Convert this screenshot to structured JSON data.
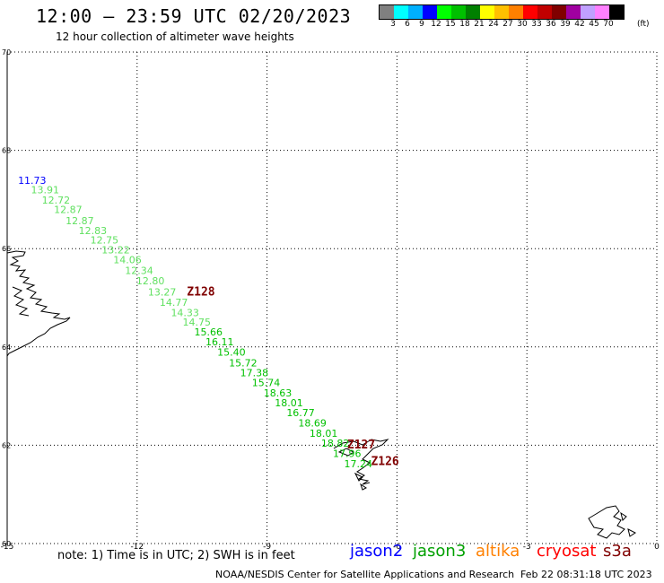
{
  "header": {
    "title": "12:00 – 23:59 UTC 02/20/2023",
    "subtitle": "12 hour collection of altimeter wave heights"
  },
  "colorbar": {
    "colors": [
      "#808080",
      "#00ffff",
      "#00b0ff",
      "#0000ff",
      "#00ff00",
      "#00c000",
      "#008000",
      "#ffff00",
      "#ffc000",
      "#ff8000",
      "#ff0000",
      "#c00000",
      "#800000",
      "#a000a0",
      "#c0a0ff",
      "#ff80ff",
      "#000000"
    ],
    "labels": [
      "3",
      "6",
      "9",
      "12",
      "15",
      "18",
      "21",
      "24",
      "27",
      "30",
      "33",
      "36",
      "39",
      "42",
      "45",
      "70"
    ],
    "unit": "(ft)"
  },
  "axes": {
    "x_ticks": [
      "-15",
      "-12",
      "-9",
      "-6",
      "-3",
      "0"
    ],
    "y_ticks": [
      "70",
      "68",
      "66",
      "64",
      "62",
      "60"
    ]
  },
  "map_data": {
    "lon_range": [
      -15,
      0
    ],
    "lat_range": [
      60,
      70
    ],
    "swh_points": [
      {
        "lon": -14.75,
        "lat": 67.32,
        "value": "11.73",
        "color": "#0000ff"
      },
      {
        "lon": -14.45,
        "lat": 67.13,
        "value": "13.91",
        "color": "#60e060"
      },
      {
        "lon": -14.2,
        "lat": 66.92,
        "value": "12.72",
        "color": "#60e060"
      },
      {
        "lon": -13.92,
        "lat": 66.72,
        "value": "12.87",
        "color": "#60e060"
      },
      {
        "lon": -13.65,
        "lat": 66.5,
        "value": "12.87",
        "color": "#60e060"
      },
      {
        "lon": -13.35,
        "lat": 66.3,
        "value": "12.83",
        "color": "#60e060"
      },
      {
        "lon": -13.08,
        "lat": 66.1,
        "value": "12.75",
        "color": "#60e060"
      },
      {
        "lon": -12.82,
        "lat": 65.9,
        "value": "13.22",
        "color": "#60e060"
      },
      {
        "lon": -12.55,
        "lat": 65.7,
        "value": "14.06",
        "color": "#60e060"
      },
      {
        "lon": -12.28,
        "lat": 65.48,
        "value": "12.34",
        "color": "#60e060"
      },
      {
        "lon": -12.02,
        "lat": 65.27,
        "value": "12.80",
        "color": "#60e060"
      },
      {
        "lon": -11.75,
        "lat": 65.05,
        "value": "13.27",
        "color": "#60e060"
      },
      {
        "lon": -11.48,
        "lat": 64.84,
        "value": "14.77",
        "color": "#60e060"
      },
      {
        "lon": -11.22,
        "lat": 64.63,
        "value": "14.33",
        "color": "#60e060"
      },
      {
        "lon": -10.95,
        "lat": 64.43,
        "value": "14.75",
        "color": "#60e060"
      },
      {
        "lon": -10.68,
        "lat": 64.23,
        "value": "15.66",
        "color": "#00c000"
      },
      {
        "lon": -10.42,
        "lat": 64.03,
        "value": "16.11",
        "color": "#00c000"
      },
      {
        "lon": -10.15,
        "lat": 63.82,
        "value": "15.40",
        "color": "#00c000"
      },
      {
        "lon": -9.88,
        "lat": 63.6,
        "value": "15.72",
        "color": "#00c000"
      },
      {
        "lon": -9.62,
        "lat": 63.4,
        "value": "17.38",
        "color": "#00c000"
      },
      {
        "lon": -9.35,
        "lat": 63.2,
        "value": "15.74",
        "color": "#00c000"
      },
      {
        "lon": -9.08,
        "lat": 62.99,
        "value": "18.63",
        "color": "#00c000"
      },
      {
        "lon": -8.82,
        "lat": 62.79,
        "value": "18.01",
        "color": "#00c000"
      },
      {
        "lon": -8.55,
        "lat": 62.59,
        "value": "16.77",
        "color": "#00c000"
      },
      {
        "lon": -8.28,
        "lat": 62.38,
        "value": "18.69",
        "color": "#00c000"
      },
      {
        "lon": -8.02,
        "lat": 62.17,
        "value": "18.01",
        "color": "#00c000"
      },
      {
        "lon": -7.75,
        "lat": 61.97,
        "value": "18.82",
        "color": "#00c000"
      },
      {
        "lon": -7.48,
        "lat": 61.76,
        "value": "17.96",
        "color": "#00c000"
      },
      {
        "lon": -7.22,
        "lat": 61.55,
        "value": "17.24",
        "color": "#00c000"
      }
    ],
    "time_labels": [
      {
        "lon": -10.85,
        "lat": 65.05,
        "text": "Z128"
      },
      {
        "lon": -7.15,
        "lat": 61.93,
        "text": "Z127"
      },
      {
        "lon": -6.6,
        "lat": 61.6,
        "text": "Z126"
      }
    ],
    "time_label_color": "#800000"
  },
  "note": "note: 1) Time is in UTC; 2) SWH is in feet",
  "legend": [
    {
      "name": "jason2",
      "color": "#0000ff"
    },
    {
      "name": "jason3",
      "color": "#00a000"
    },
    {
      "name": "altika",
      "color": "#ff8000"
    },
    {
      "name": "cryosat",
      "color": "#ff0000"
    },
    {
      "name": "s3a",
      "color": "#800000"
    }
  ],
  "footer": {
    "credit": "NOAA/NESDIS Center for Satellite Applications and Research",
    "timestamp": "Feb 22 08:31:18 UTC 2023"
  }
}
